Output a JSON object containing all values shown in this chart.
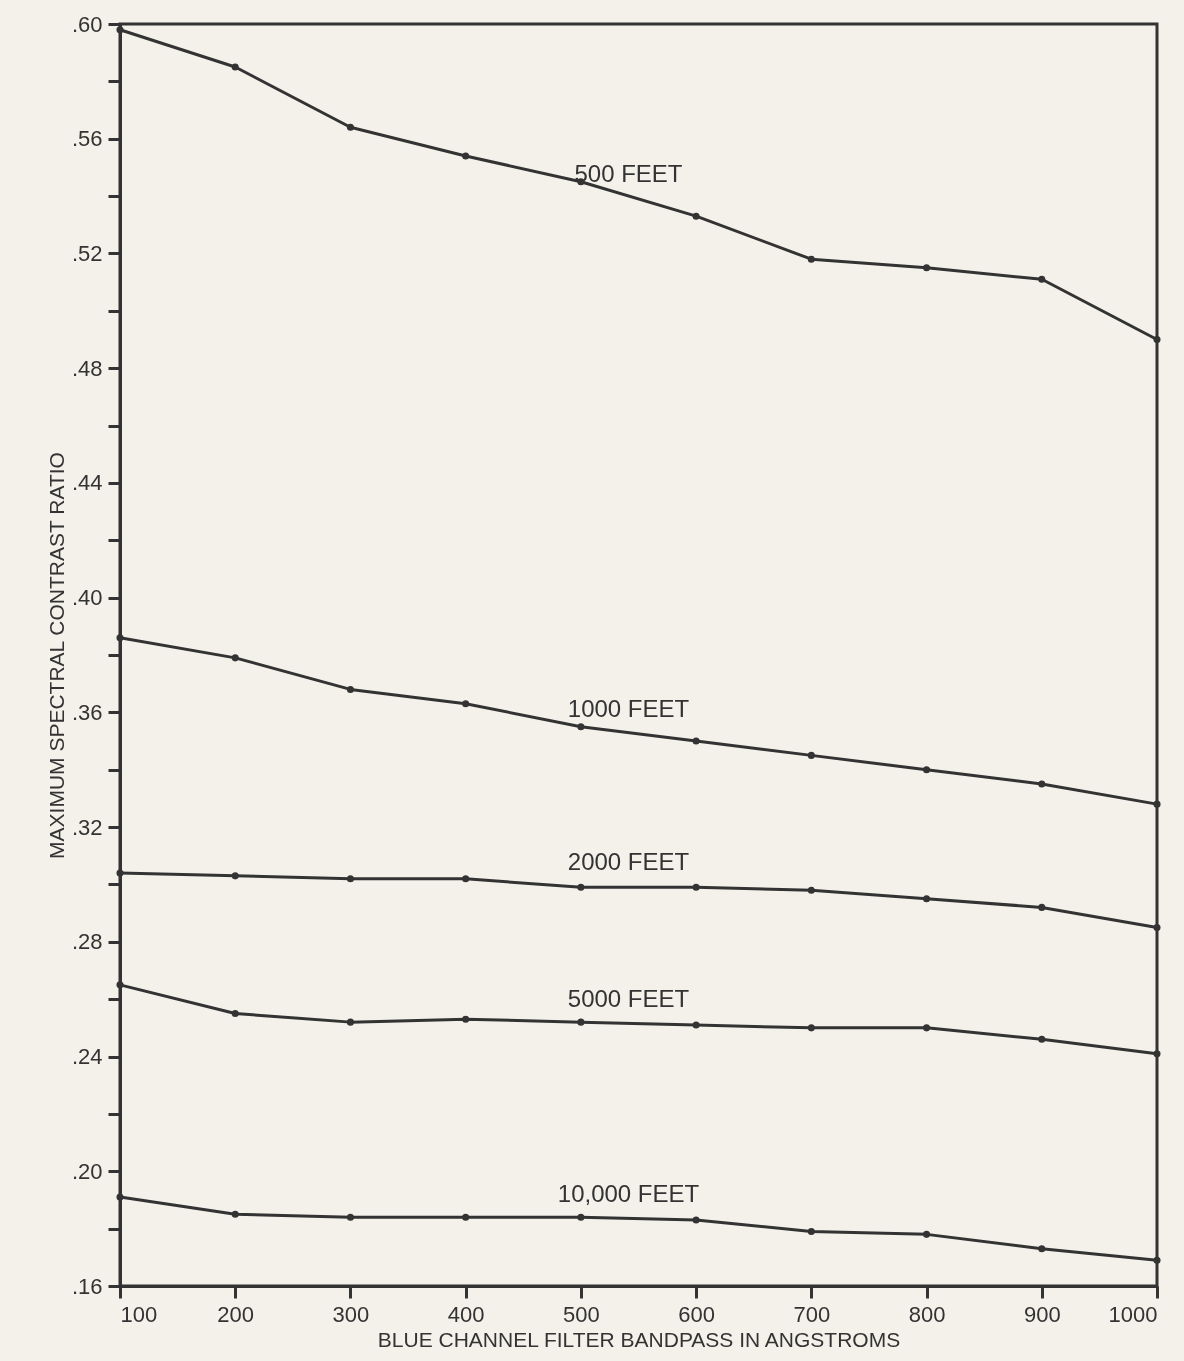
{
  "chart_data": {
    "type": "line",
    "xlabel": "BLUE CHANNEL FILTER BANDPASS IN ANGSTROMS",
    "ylabel": "MAXIMUM SPECTRAL CONTRAST RATIO",
    "x": [
      100,
      200,
      300,
      400,
      500,
      600,
      700,
      800,
      900,
      1000
    ],
    "xlim": [
      100,
      1000
    ],
    "xticks": [
      100,
      200,
      300,
      400,
      500,
      600,
      700,
      800,
      900,
      1000
    ],
    "ylim": [
      0.16,
      0.6
    ],
    "yticks": [
      {
        "value": 0.16,
        "label": ".16"
      },
      {
        "value": 0.18,
        "label": null
      },
      {
        "value": 0.2,
        "label": ".20"
      },
      {
        "value": 0.22,
        "label": null
      },
      {
        "value": 0.24,
        "label": ".24"
      },
      {
        "value": 0.26,
        "label": null
      },
      {
        "value": 0.28,
        "label": ".28"
      },
      {
        "value": 0.3,
        "label": null
      },
      {
        "value": 0.32,
        "label": ".32"
      },
      {
        "value": 0.34,
        "label": null
      },
      {
        "value": 0.36,
        "label": ".36"
      },
      {
        "value": 0.38,
        "label": null
      },
      {
        "value": 0.4,
        "label": ".40"
      },
      {
        "value": 0.42,
        "label": null
      },
      {
        "value": 0.44,
        "label": ".44"
      },
      {
        "value": 0.46,
        "label": null
      },
      {
        "value": 0.48,
        "label": ".48"
      },
      {
        "value": 0.5,
        "label": null
      },
      {
        "value": 0.52,
        "label": ".52"
      },
      {
        "value": 0.54,
        "label": null
      },
      {
        "value": 0.56,
        "label": ".56"
      },
      {
        "value": 0.58,
        "label": null
      },
      {
        "value": 0.6,
        "label": ".60"
      }
    ],
    "grid": false,
    "marker": "circle",
    "line_style": "solid",
    "legend": false,
    "series": [
      {
        "name": "500 FEET",
        "color": "#333333",
        "values": [
          0.598,
          0.585,
          0.564,
          0.554,
          0.545,
          0.533,
          0.518,
          0.515,
          0.511,
          0.49
        ]
      },
      {
        "name": "1000 FEET",
        "color": "#333333",
        "values": [
          0.386,
          0.379,
          0.368,
          0.363,
          0.355,
          0.35,
          0.345,
          0.34,
          0.335,
          0.328
        ]
      },
      {
        "name": "2000 FEET",
        "color": "#333333",
        "values": [
          0.304,
          0.303,
          0.302,
          0.302,
          0.299,
          0.299,
          0.298,
          0.295,
          0.292,
          0.285
        ]
      },
      {
        "name": "5000 FEET",
        "color": "#333333",
        "values": [
          0.265,
          0.255,
          0.252,
          0.253,
          0.252,
          0.251,
          0.25,
          0.25,
          0.246,
          0.241
        ]
      },
      {
        "name": "10,000 FEET",
        "color": "#333333",
        "values": [
          0.191,
          0.185,
          0.184,
          0.184,
          0.184,
          0.183,
          0.179,
          0.178,
          0.173,
          0.169
        ]
      }
    ]
  }
}
